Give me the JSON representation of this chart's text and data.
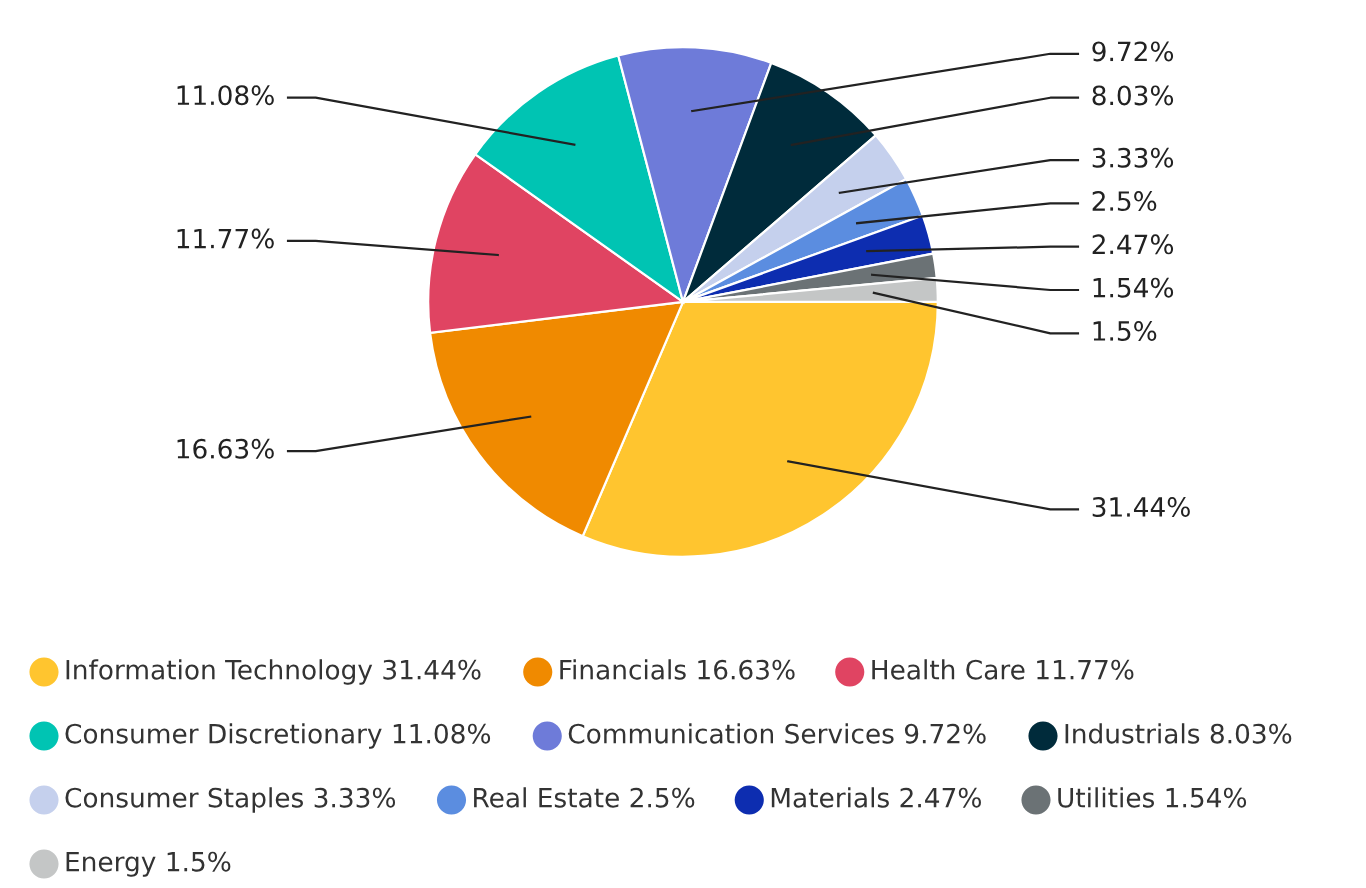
{
  "chart_data": {
    "type": "pie",
    "categories": [
      "Information Technology",
      "Financials",
      "Health Care",
      "Consumer Discretionary",
      "Communication Services",
      "Industrials",
      "Consumer Staples",
      "Real Estate",
      "Materials",
      "Utilities",
      "Energy"
    ],
    "values": [
      31.44,
      16.63,
      11.77,
      11.08,
      9.72,
      8.03,
      3.33,
      2.5,
      2.47,
      1.54,
      1.5
    ],
    "value_labels": [
      "31.44%",
      "16.63%",
      "11.77%",
      "11.08%",
      "9.72%",
      "8.03%",
      "3.33%",
      "2.5%",
      "2.47%",
      "1.54%",
      "1.5%"
    ],
    "colors": [
      "#ffc52f",
      "#f08a00",
      "#e04462",
      "#00c4b3",
      "#6e7bd9",
      "#002b3b",
      "#c5d0ed",
      "#5b8de0",
      "#0d2db0",
      "#6b7275",
      "#c4c6c6"
    ],
    "legend": "bottom"
  }
}
